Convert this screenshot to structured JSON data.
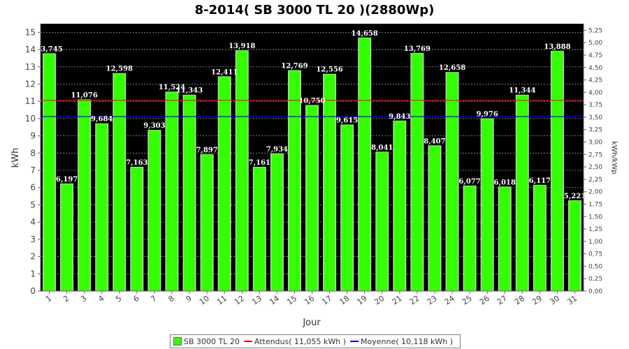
{
  "chart_data": {
    "type": "bar",
    "title": "8-2014( SB 3000 TL 20 )(2880Wp)",
    "xlabel": "Jour",
    "ylabel": "kWh",
    "y2label": "kWh/kWp",
    "ylim": [
      0,
      15.5
    ],
    "y2lim": [
      0,
      5.3819
    ],
    "yticks": [
      "0",
      "1",
      "2",
      "3",
      "4",
      "5",
      "6",
      "7",
      "8",
      "9",
      "10",
      "11",
      "12",
      "13",
      "14",
      "15"
    ],
    "y2ticks": [
      "0,00",
      "0,25",
      "0,50",
      "0,75",
      "1,00",
      "1,25",
      "1,50",
      "1,75",
      "2,00",
      "2,25",
      "2,50",
      "2,75",
      "3,00",
      "3,25",
      "3,50",
      "3,75",
      "4,00",
      "4,25",
      "4,50",
      "4,75",
      "5,00",
      "5,25"
    ],
    "categories": [
      "1",
      "2",
      "3",
      "4",
      "5",
      "6",
      "7",
      "8",
      "9",
      "10",
      "11",
      "12",
      "13",
      "14",
      "15",
      "16",
      "17",
      "18",
      "19",
      "20",
      "21",
      "22",
      "23",
      "24",
      "25",
      "26",
      "27",
      "28",
      "29",
      "30",
      "31"
    ],
    "series": [
      {
        "name": "SB 3000 TL 20",
        "values": [
          13.745,
          6.197,
          11.076,
          9.684,
          12.598,
          7.163,
          9.303,
          11.524,
          11.343,
          7.897,
          12.411,
          13.918,
          7.161,
          7.934,
          12.769,
          10.75,
          12.556,
          9.615,
          14.658,
          8.041,
          9.843,
          13.769,
          8.407,
          12.658,
          6.077,
          9.976,
          6.018,
          11.344,
          6.117,
          13.888,
          5.221
        ],
        "labels": [
          "13,745",
          "6,197",
          "11,076",
          "9,684",
          "12,598",
          "7,163",
          "9,303",
          "11,524",
          "11,343",
          "7,897",
          "12,411",
          "13,918",
          "7,161",
          "7,934",
          "12,769",
          "10,750",
          "12,556",
          "9,615",
          "14,658",
          "8,041",
          "9,843",
          "13,769",
          "8,407",
          "12,658",
          "6,077",
          "9,976",
          "6,018",
          "11,344",
          "6,117",
          "13,888",
          "5,221"
        ]
      }
    ],
    "reference_lines": [
      {
        "name": "Attendus( 11,055 kWh )",
        "value": 11.055,
        "color": "#ff0000"
      },
      {
        "name": "Moyenne( 10,118 kWh )",
        "value": 10.118,
        "color": "#0000ff"
      }
    ],
    "grid": true,
    "legend": "bottom",
    "colors": {
      "bar": "#33ff00",
      "plot_background": "#000000",
      "grid": "#9a9a9a"
    }
  }
}
